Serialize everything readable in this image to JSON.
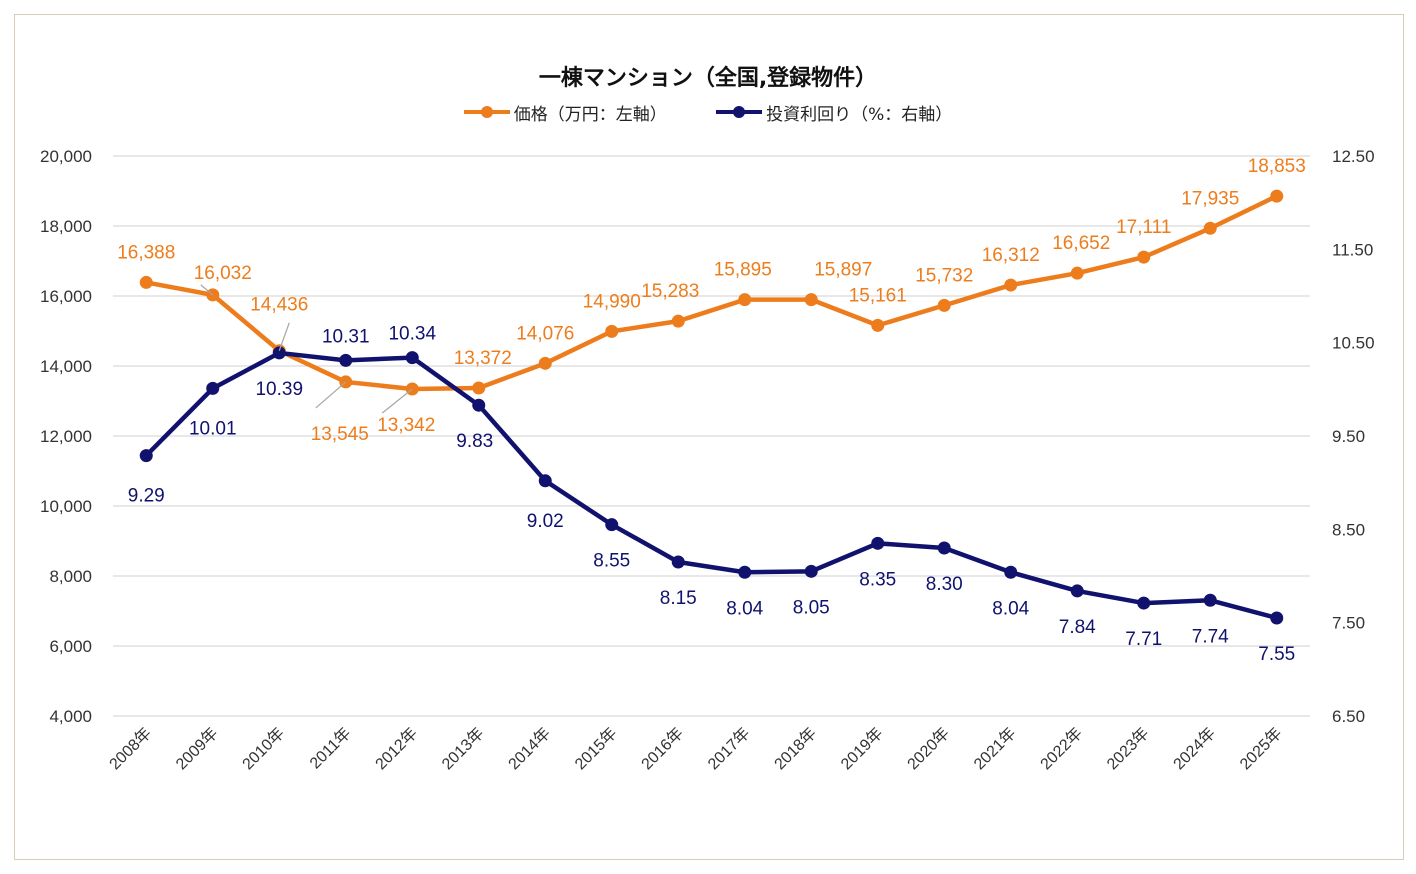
{
  "chart_data": {
    "type": "line",
    "title": "一棟マンション（全国,登録物件）",
    "categories": [
      "2008年",
      "2009年",
      "2010年",
      "2011年",
      "2012年",
      "2013年",
      "2014年",
      "2015年",
      "2016年",
      "2017年",
      "2018年",
      "2019年",
      "2020年",
      "2021年",
      "2022年",
      "2023年",
      "2024年",
      "2025年"
    ],
    "series": [
      {
        "name": "価格（万円：左軸）",
        "axis": "left",
        "color": "#ed7d1c",
        "values": [
          16388,
          16032,
          14436,
          13545,
          13342,
          13372,
          14076,
          14990,
          15283,
          15895,
          15897,
          15161,
          15732,
          16312,
          16652,
          17111,
          17935,
          18853
        ],
        "labels": [
          "16,388",
          "16,032",
          "14,436",
          "13,545",
          "13,342",
          "13,372",
          "14,076",
          "14,990",
          "15,283",
          "15,895",
          "15,897",
          "15,161",
          "15,732",
          "16,312",
          "16,652",
          "17,111",
          "17,935",
          "18,853"
        ]
      },
      {
        "name": "投資利回り（%：右軸）",
        "axis": "right",
        "color": "#10126e",
        "values": [
          9.29,
          10.01,
          10.39,
          10.31,
          10.34,
          9.83,
          9.02,
          8.55,
          8.15,
          8.04,
          8.05,
          8.35,
          8.3,
          8.04,
          7.84,
          7.71,
          7.74,
          7.55
        ],
        "labels": [
          "9.29",
          "10.01",
          "10.39",
          "10.31",
          "10.34",
          "9.83",
          "9.02",
          "8.55",
          "8.15",
          "8.04",
          "8.05",
          "8.35",
          "8.30",
          "8.04",
          "7.84",
          "7.71",
          "7.74",
          "7.55"
        ]
      }
    ],
    "y_left": {
      "lim": [
        4000,
        20000
      ],
      "ticks": [
        "4,000",
        "6,000",
        "8,000",
        "10,000",
        "12,000",
        "14,000",
        "16,000",
        "18,000",
        "20,000"
      ]
    },
    "y_right": {
      "lim": [
        6.5,
        12.5
      ],
      "ticks": [
        "6.50",
        "7.50",
        "8.50",
        "9.50",
        "10.50",
        "11.50",
        "12.50"
      ]
    },
    "grid": true,
    "legend": "top-center"
  }
}
